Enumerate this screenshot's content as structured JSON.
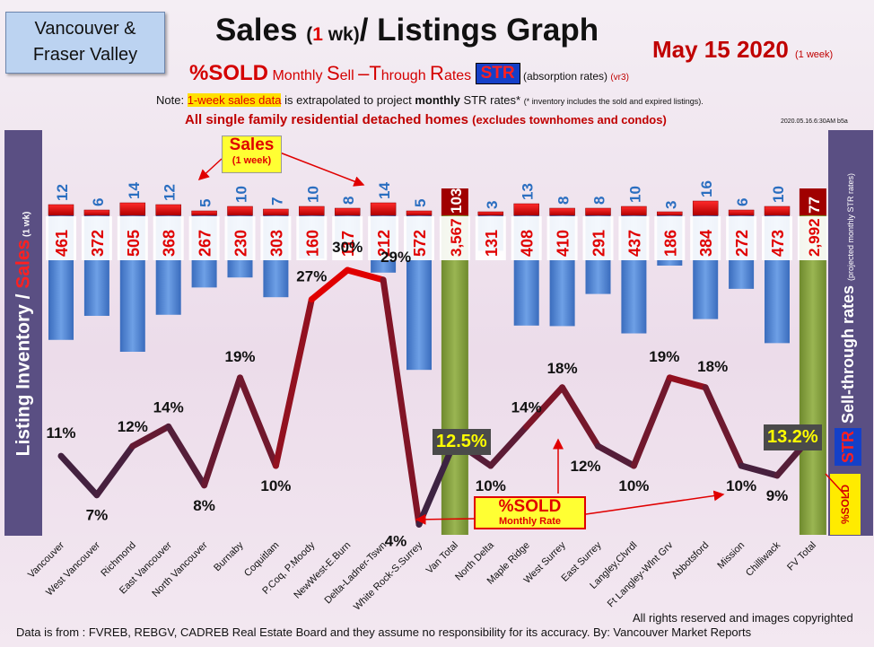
{
  "header": {
    "region_line1": "Vancouver &",
    "region_line2": "Fraser Valley",
    "title_part1": "Sales ",
    "title_paren_open": "(",
    "title_num": "1",
    "title_wk": " wk)",
    "title_part2": "/ Listings Graph",
    "date": "May 15  2020 ",
    "date_note": "(1 week)",
    "sub_sold": "%SOLD",
    "sub_rest_a": " Monthly ",
    "sub_S": "S",
    "sub_ell": "ell ",
    "sub_dash": "–",
    "sub_T": "T",
    "sub_hrough": "hrough ",
    "sub_R": "R",
    "sub_ates": "ates ",
    "str_badge": "STR",
    "absorption": " (absorption rates) ",
    "vr3": "(vr3)",
    "note_prefix": "Note: ",
    "note_highlight": "1-week sales data",
    "note_mid": " is extrapolated to project ",
    "note_bold": "monthly",
    "note_rest": " STR rates* ",
    "note_tiny": "(* inventory includes the sold and expired listings).",
    "exclusion": "All single family residential detached homes ",
    "exclusion_small": "(excludes townhomes and condos)",
    "timestamp": "2020.05.16.6:30AM b5a"
  },
  "side_labels": {
    "left_main": "Listing Inventory / ",
    "left_sales": "Sales",
    "left_small": " (1 wk)",
    "right_str": "STR",
    "right_main": " Sell-through rates ",
    "right_small": "(projected monthly STR rates)",
    "right_sold": "%SOLD"
  },
  "callouts": {
    "sales_title": "Sales",
    "sales_sub": "(1 week)",
    "sold_title": "%SOLD",
    "sold_sub": "Monthly Rate",
    "van_total_pct": "12.5%",
    "fv_total_pct": "13.2%"
  },
  "footer": {
    "source": "Data is from : FVREB, REBGV, CADREB Real Estate Board and they assume no responsibility for its accuracy. By: Vancouver Market Reports",
    "rights": "All rights reserved and  images copyrighted"
  },
  "colors": {
    "inventory_bar": "#4a7fd0",
    "sales_bar": "#e80000",
    "total_bar": "#7d9a3a",
    "total_sales_bar": "#a00000",
    "label_blue": "#2a6ec0",
    "label_red": "#e00000",
    "line_high": "#e00000",
    "line_low": "#1a2a50"
  },
  "chart_data": {
    "type": "bar",
    "categories": [
      "Vancouver",
      "West Vancouver",
      "Richmond",
      "East Vancouver",
      "North Vancouver",
      "Burnaby",
      "Coquitlam",
      "P.Coq, P.Moody",
      "NewWest-E.Burn",
      "Delta-Ladner-Tswn",
      "White Rock-S.Surrey",
      "Van Total",
      "North Delta",
      "Maple Ridge",
      "West Surrey",
      "East Surrey",
      "Langley,Clvrdl",
      "Ft Langley-Wlnt Grv",
      "Abbotsford",
      "Mission",
      "Chilliwack",
      "FV Total"
    ],
    "sales_labels": [
      "12",
      "6",
      "14",
      "12",
      "5",
      "10",
      "7",
      "10",
      "8",
      "14",
      "5",
      "103",
      "3",
      "13",
      "8",
      "8",
      "10",
      "3",
      "16",
      "6",
      "10",
      "77"
    ],
    "inventory_labels": [
      "461",
      "372",
      "505",
      "368",
      "267",
      "230",
      "303",
      "160",
      "117",
      "212",
      "572",
      "3,567",
      "131",
      "408",
      "410",
      "291",
      "437",
      "186",
      "384",
      "272",
      "473",
      "2,992"
    ],
    "series": [
      {
        "name": "Sales",
        "values": [
          12,
          6,
          14,
          12,
          5,
          10,
          7,
          10,
          8,
          14,
          5,
          103,
          3,
          13,
          8,
          8,
          10,
          3,
          16,
          6,
          10,
          77
        ]
      },
      {
        "name": "Listing Inventory",
        "values": [
          461,
          372,
          505,
          368,
          267,
          230,
          303,
          160,
          117,
          212,
          572,
          3567,
          131,
          408,
          410,
          291,
          437,
          186,
          384,
          272,
          473,
          2992
        ]
      },
      {
        "name": "%SOLD",
        "values": [
          11,
          7,
          12,
          14,
          8,
          19,
          10,
          27,
          30,
          29,
          4,
          12.5,
          10,
          14,
          18,
          12,
          10,
          19,
          18,
          10,
          9,
          13.2
        ]
      }
    ],
    "pct_labels": [
      "11%",
      "7%",
      "12%",
      "14%",
      "8%",
      "19%",
      "10%",
      "27%",
      "30%",
      "29%",
      "4%",
      "12.5%",
      "10%",
      "14%",
      "18%",
      "12%",
      "10%",
      "19%",
      "18%",
      "10%",
      "9%",
      "13.2%"
    ]
  }
}
